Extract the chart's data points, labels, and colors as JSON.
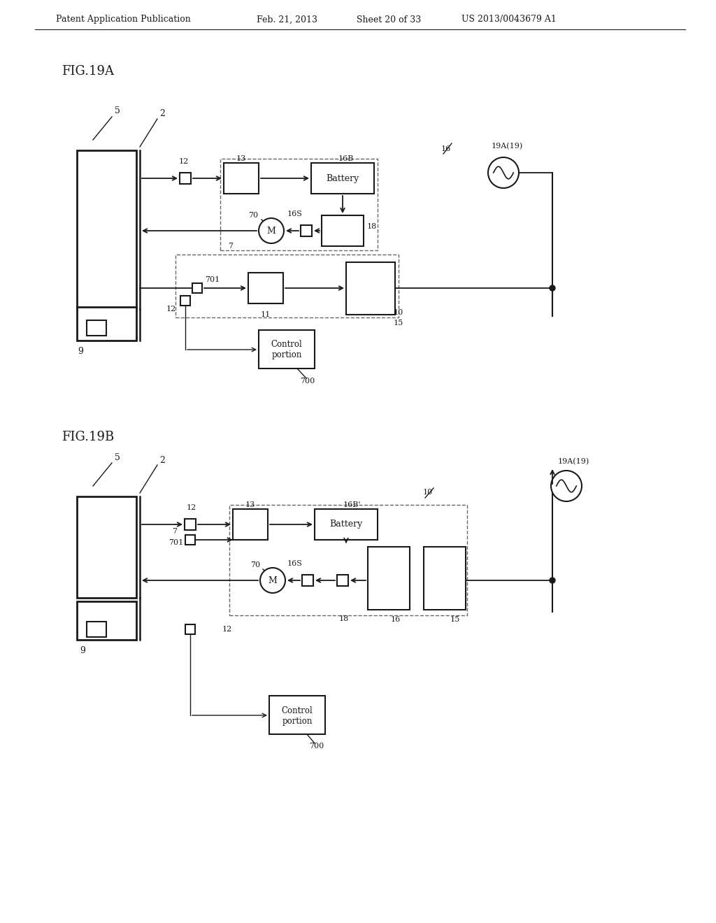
{
  "bg_color": "#ffffff",
  "header_text": "Patent Application Publication",
  "header_date": "Feb. 21, 2013",
  "header_sheet": "Sheet 20 of 33",
  "header_patent": "US 2013/0043679 A1",
  "fig_label_A": "FIG.19A",
  "fig_label_B": "FIG.19B",
  "line_color": "#1a1a1a",
  "dashed_color": "#666666",
  "box_face": "#ffffff",
  "box_edge": "#1a1a1a"
}
